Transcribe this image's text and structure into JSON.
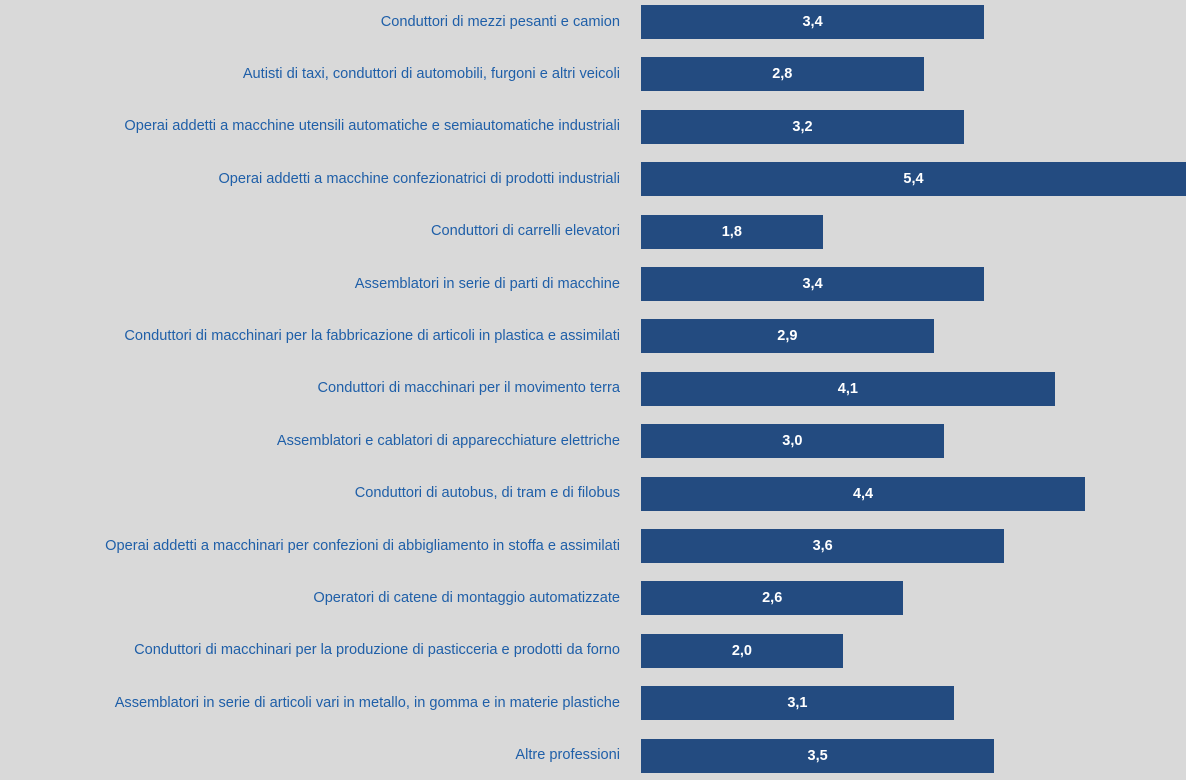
{
  "chart_data": {
    "type": "barh",
    "categories": [
      "Conduttori di mezzi pesanti e camion",
      "Autisti di taxi, conduttori di automobili, furgoni e altri veicoli",
      "Operai addetti a macchine utensili automatiche e semiautomatiche industriali",
      "Operai addetti a macchine confezionatrici di prodotti industriali",
      "Conduttori di carrelli elevatori",
      "Assemblatori in serie di parti di macchine",
      "Conduttori di macchinari per la fabbricazione di articoli in plastica e assimilati",
      "Conduttori di macchinari per il movimento terra",
      "Assemblatori e cablatori di apparecchiature elettriche",
      "Conduttori di autobus, di tram e di filobus",
      "Operai addetti a macchinari per confezioni di abbigliamento in stoffa e assimilati",
      "Operatori di catene di montaggio automatizzate",
      "Conduttori di macchinari per la produzione di pasticceria e prodotti da forno",
      "Assemblatori in serie di articoli vari in metallo, in gomma e in materie plastiche",
      "Altre professioni"
    ],
    "values": [
      3.4,
      2.8,
      3.2,
      5.4,
      1.8,
      3.4,
      2.9,
      4.1,
      3.0,
      4.4,
      3.6,
      2.6,
      2.0,
      3.1,
      3.5
    ],
    "value_labels": [
      "3,4",
      "2,8",
      "3,2",
      "5,4",
      "1,8",
      "3,4",
      "2,9",
      "4,1",
      "3,0",
      "4,4",
      "3,6",
      "2,6",
      "2,0",
      "3,1",
      "3,5"
    ],
    "color": "#234b80"
  }
}
